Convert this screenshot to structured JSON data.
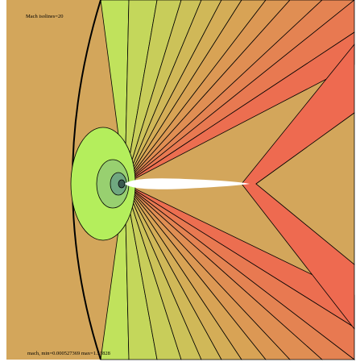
{
  "header": {
    "title": "Mach isolines=20"
  },
  "footer": {
    "caption": "mach, min=0.000527369 max=1.51828"
  }
}
